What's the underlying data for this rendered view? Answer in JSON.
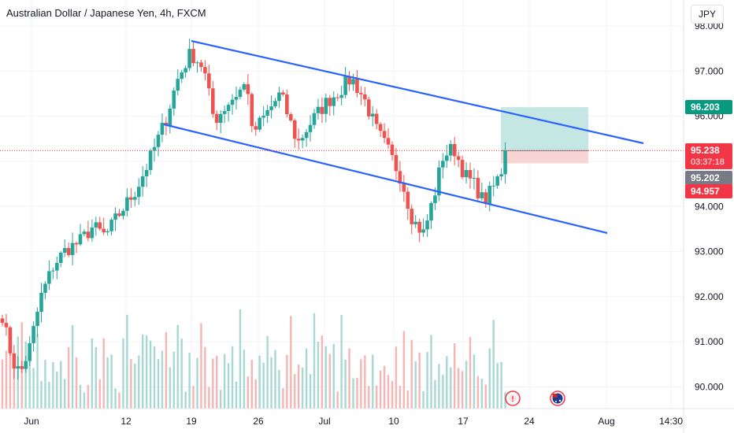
{
  "header": {
    "title": "Australian Dollar / Japanese Yen, 4h, FXCM",
    "currency_button": "JPY"
  },
  "colors": {
    "up": "#26a69a",
    "down": "#ef5350",
    "channel": "#2962ff",
    "target_zone": "#b2dfdb",
    "stop_zone": "#f8cdcd",
    "last_price_tag": "#f23645",
    "target_tag": "#089981",
    "grey_tag": "#787b86"
  },
  "chart_data": {
    "type": "candlestick",
    "symbol": "AUDJPY",
    "timeframe": "4h",
    "source": "FXCM",
    "ylim": [
      89.5,
      98.0
    ],
    "y_ticks": [
      "90.000",
      "91.000",
      "92.000",
      "93.000",
      "94.000",
      "95.000",
      "96.000",
      "97.000",
      "98.000"
    ],
    "x_ticks": [
      "Jun",
      "12",
      "19",
      "26",
      "Jul",
      "10",
      "17",
      "24",
      "Aug",
      "14:30"
    ],
    "price_tags": {
      "target": "96.203",
      "last": "95.238",
      "countdown": "03:37:18",
      "grey": "95.202",
      "low": "94.957"
    },
    "waypoints": [
      [
        0,
        91.85
      ],
      [
        10,
        91.0
      ],
      [
        18,
        90.5
      ],
      [
        26,
        90.3
      ],
      [
        38,
        90.9
      ],
      [
        52,
        92.0
      ],
      [
        68,
        92.7
      ],
      [
        84,
        93.05
      ],
      [
        100,
        93.2
      ],
      [
        118,
        93.55
      ],
      [
        134,
        93.35
      ],
      [
        150,
        93.8
      ],
      [
        172,
        94.35
      ],
      [
        188,
        94.95
      ],
      [
        210,
        95.9
      ],
      [
        225,
        96.8
      ],
      [
        242,
        97.4
      ],
      [
        258,
        97.1
      ],
      [
        272,
        95.9
      ],
      [
        290,
        96.3
      ],
      [
        314,
        96.75
      ],
      [
        320,
        95.6
      ],
      [
        340,
        96.1
      ],
      [
        356,
        96.5
      ],
      [
        378,
        95.4
      ],
      [
        396,
        95.9
      ],
      [
        414,
        96.3
      ],
      [
        430,
        96.55
      ],
      [
        446,
        96.85
      ],
      [
        462,
        96.4
      ],
      [
        478,
        95.7
      ],
      [
        494,
        95.2
      ],
      [
        510,
        94.6
      ],
      [
        524,
        93.7
      ],
      [
        538,
        93.4
      ],
      [
        552,
        94.3
      ],
      [
        562,
        95.1
      ],
      [
        576,
        95.3
      ],
      [
        590,
        94.7
      ],
      [
        604,
        94.45
      ],
      [
        614,
        94.1
      ],
      [
        624,
        94.35
      ],
      [
        636,
        94.75
      ],
      [
        642,
        95.22
      ]
    ],
    "channel": {
      "upper": [
        [
          43,
          97.65
        ],
        [
          75,
          95.35
        ]
      ],
      "lower": [
        [
          40,
          95.8
        ],
        [
          73,
          93.45
        ]
      ]
    },
    "position": {
      "entry": 95.238,
      "target": 96.203,
      "stop": 94.957
    },
    "events": [
      {
        "icon": "economic-event-icon",
        "label": "!"
      },
      {
        "icon": "australia-flag-icon",
        "label": ""
      }
    ]
  }
}
